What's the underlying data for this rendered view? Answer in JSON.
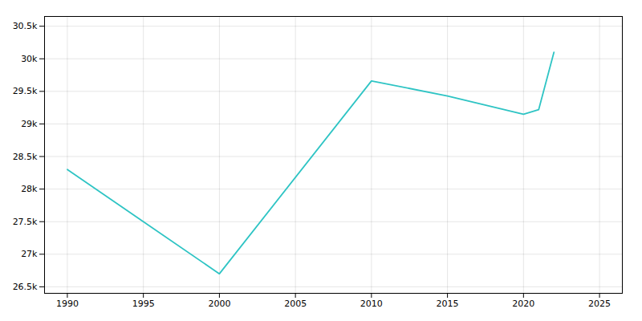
{
  "chart_data": {
    "type": "line",
    "x": [
      1990,
      1995,
      2000,
      2010,
      2015,
      2020,
      2021,
      2022
    ],
    "values": [
      28300,
      27500,
      26700,
      29660,
      29430,
      29150,
      29220,
      30100
    ],
    "color": "#2EC4C4",
    "xlim": [
      1988.5,
      2026.5
    ],
    "xticks": [
      1990,
      1995,
      2000,
      2005,
      2010,
      2015,
      2020,
      2025
    ],
    "ylim": [
      26400,
      30650
    ],
    "yticks": [
      {
        "value": 26500,
        "label": "26.5k"
      },
      {
        "value": 27000,
        "label": "27k"
      },
      {
        "value": 27500,
        "label": "27.5k"
      },
      {
        "value": 28000,
        "label": "28k"
      },
      {
        "value": 28500,
        "label": "28.5k"
      },
      {
        "value": 29000,
        "label": "29k"
      },
      {
        "value": 29500,
        "label": "29.5k"
      },
      {
        "value": 30000,
        "label": "30k"
      },
      {
        "value": 30500,
        "label": "30.5k"
      }
    ],
    "grid": true
  }
}
